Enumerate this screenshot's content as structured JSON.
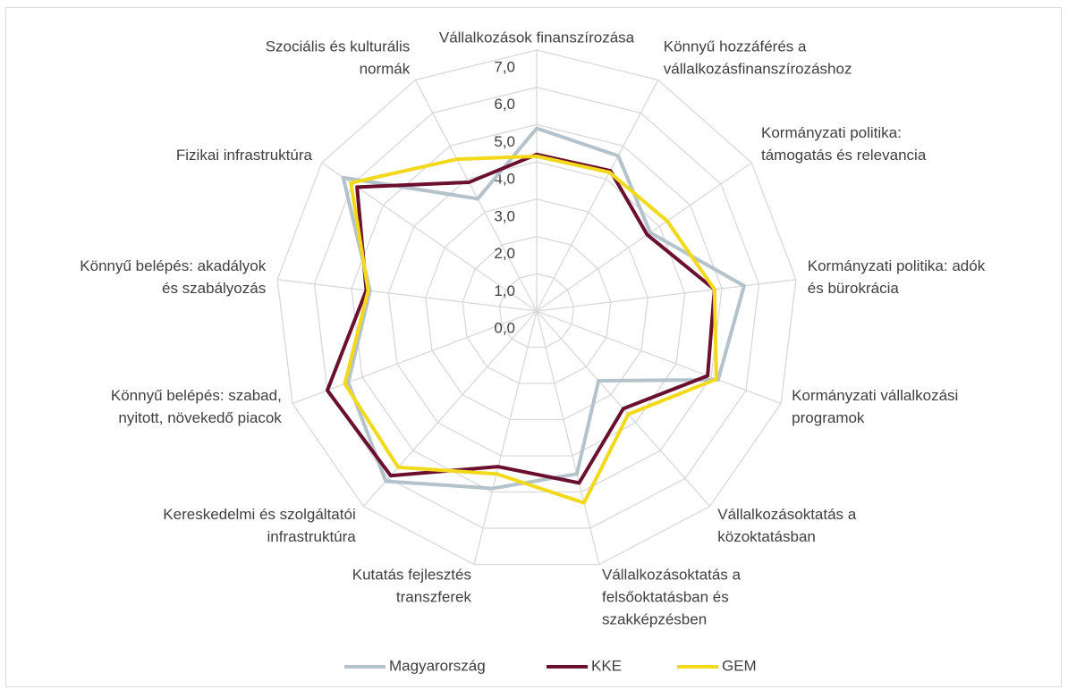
{
  "chart_data": {
    "type": "radar",
    "categories": [
      [
        "Vállalkozások finanszírozása"
      ],
      [
        "Könnyű hozzáférés a",
        "vállalkozásfinanszírozáshoz"
      ],
      [
        "Kormányzati politika:",
        "támogatás és relevancia"
      ],
      [
        "Kormányzati politika: adók",
        "és bürokrácia"
      ],
      [
        "Kormányzati vállalkozási",
        "programok"
      ],
      [
        "Vállalkozásoktatás a",
        "közoktatásban"
      ],
      [
        "Vállalkozásoktatás a",
        "felsőoktatásban és",
        "szakképzésben"
      ],
      [
        "Kutatás fejlesztés",
        "transzferek"
      ],
      [
        "Kereskedelmi és szolgáltatói",
        "infrastruktúra"
      ],
      [
        "Könnyű belépés: szabad,",
        "nyitott, növekedő piacok"
      ],
      [
        "Könnyű belépés: akadályok",
        "és szabályozás"
      ],
      [
        "Fizikai infrastruktúra"
      ],
      [
        "Szociális és kulturális",
        "normák"
      ]
    ],
    "series": [
      {
        "name": "Magyarország",
        "color": "#b4c2cb",
        "values": [
          4.9,
          4.7,
          3.7,
          5.6,
          5.2,
          2.5,
          4.5,
          4.9,
          6.1,
          5.4,
          4.5,
          6.3,
          3.4
        ]
      },
      {
        "name": "KKE",
        "color": "#6b0f2f",
        "values": [
          4.2,
          4.25,
          3.6,
          4.8,
          4.9,
          3.5,
          4.75,
          4.3,
          5.9,
          6.0,
          4.6,
          5.85,
          3.9
        ]
      },
      {
        "name": "GEM",
        "color": "#f2d91c",
        "values": [
          4.15,
          4.2,
          4.25,
          4.8,
          5.15,
          3.7,
          5.3,
          4.5,
          5.6,
          5.5,
          4.55,
          6.05,
          4.6
        ]
      }
    ],
    "ylim": [
      0,
      7
    ],
    "yticks": [
      {
        "value": 0,
        "label": "0,0"
      },
      {
        "value": 1,
        "label": "1,0"
      },
      {
        "value": 2,
        "label": "2,0"
      },
      {
        "value": 3,
        "label": "3,0"
      },
      {
        "value": 4,
        "label": "4,0"
      },
      {
        "value": 5,
        "label": "5,0"
      },
      {
        "value": 6,
        "label": "6,0"
      },
      {
        "value": 7,
        "label": "7,0"
      }
    ],
    "grid": true,
    "legend": "bottom"
  }
}
